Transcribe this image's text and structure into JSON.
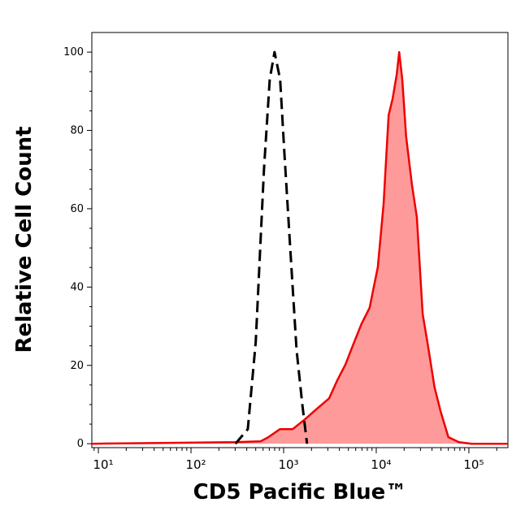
{
  "chart_data": {
    "type": "histogram-overlay",
    "x_label": "CD5 Pacific Blue™",
    "y_label": "Relative Cell Count",
    "xscale": "log",
    "xlim": [
      8.5,
      264000
    ],
    "ylim": [
      -1,
      105
    ],
    "xticks": [
      {
        "value": 10,
        "label": "10¹"
      },
      {
        "value": 100,
        "label": "10²"
      },
      {
        "value": 1000,
        "label": "10³"
      },
      {
        "value": 10000,
        "label": "10⁴"
      },
      {
        "value": 100000,
        "label": "10⁵"
      }
    ],
    "yticks": [
      0,
      20,
      40,
      60,
      80,
      100
    ],
    "series": [
      {
        "color": "#ee0000",
        "fill": "#ff9a9a",
        "style": "solid",
        "x": [
          8.5,
          49,
          302,
          562,
          676,
          912,
          1250,
          1690,
          2280,
          3100,
          3780,
          4640,
          5660,
          6930,
          8480,
          10400,
          12000,
          13600,
          15000,
          16600,
          17700,
          19100,
          21000,
          24300,
          27400,
          31700,
          36300,
          42500,
          49500,
          60100,
          78000,
          107000,
          264000
        ],
        "values": [
          0,
          0.2,
          0.4,
          0.6,
          1.6,
          3.7,
          3.7,
          6.2,
          8.9,
          11.6,
          16.1,
          20.2,
          25.4,
          30.6,
          34.7,
          45.1,
          61.2,
          83.9,
          88.0,
          94.2,
          100,
          93.0,
          78.5,
          66.1,
          57.9,
          33.1,
          24.8,
          14.5,
          8.3,
          1.7,
          0.4,
          0,
          0
        ]
      },
      {
        "color": "#000000",
        "style": "dashed",
        "x": [
          302,
          410,
          500,
          613,
          708,
          798,
          916,
          1020,
          1170,
          1380,
          1590,
          1790
        ],
        "values": [
          0,
          3.7,
          26,
          70,
          93,
          100,
          93,
          74,
          51,
          24,
          10,
          0
        ]
      }
    ]
  }
}
